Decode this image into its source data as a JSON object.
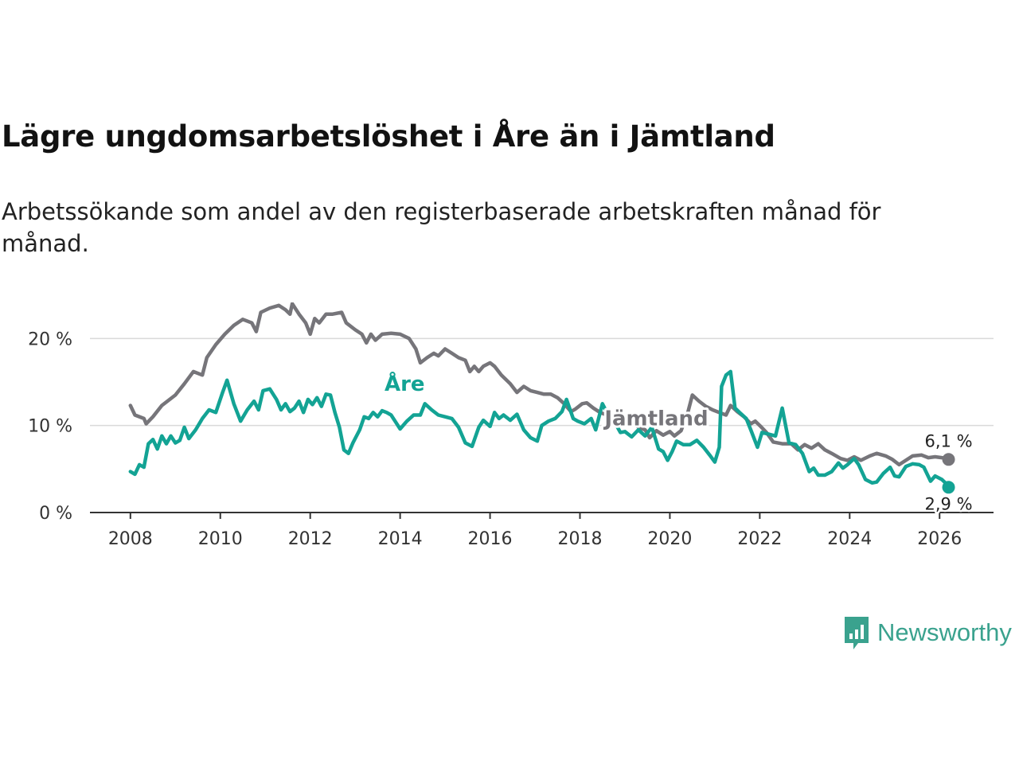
{
  "title": "Lägre ungdomsarbetslöshet i Åre än i Jämtland",
  "subtitle": "Arbetssökande som andel av den registerbaserade arbetskraften månad för månad.",
  "brand": {
    "name": "Newsworthy",
    "color": "#3aa28e"
  },
  "chart_data": {
    "type": "line",
    "xlim": [
      2007.1,
      2027.2
    ],
    "ylim": [
      0,
      22.5
    ],
    "yticks": [
      0,
      10,
      20
    ],
    "ytick_labels": [
      "0 %",
      "10 %",
      "20 %"
    ],
    "xticks": [
      2008,
      2010,
      2012,
      2014,
      2016,
      2018,
      2020,
      2022,
      2024,
      2026
    ],
    "xtick_labels": [
      "2008",
      "2010",
      "2012",
      "2014",
      "2016",
      "2018",
      "2020",
      "2022",
      "2024",
      "2026"
    ],
    "grid": true,
    "series": [
      {
        "name": "Jämtland",
        "color": "#76757a",
        "end_label": "6,1 %",
        "points": [
          [
            2008.0,
            12.3
          ],
          [
            2008.1,
            11.2
          ],
          [
            2008.3,
            10.8
          ],
          [
            2008.35,
            10.2
          ],
          [
            2008.5,
            11.0
          ],
          [
            2008.7,
            12.3
          ],
          [
            2009.0,
            13.5
          ],
          [
            2009.2,
            14.8
          ],
          [
            2009.4,
            16.2
          ],
          [
            2009.6,
            15.8
          ],
          [
            2009.7,
            17.8
          ],
          [
            2009.9,
            19.3
          ],
          [
            2010.1,
            20.5
          ],
          [
            2010.3,
            21.5
          ],
          [
            2010.5,
            22.2
          ],
          [
            2010.7,
            21.8
          ],
          [
            2010.8,
            20.8
          ],
          [
            2010.9,
            23.0
          ],
          [
            2011.1,
            23.5
          ],
          [
            2011.3,
            23.8
          ],
          [
            2011.45,
            23.3
          ],
          [
            2011.55,
            22.8
          ],
          [
            2011.6,
            24.0
          ],
          [
            2011.75,
            22.8
          ],
          [
            2011.9,
            21.8
          ],
          [
            2012.0,
            20.5
          ],
          [
            2012.1,
            22.3
          ],
          [
            2012.2,
            21.8
          ],
          [
            2012.35,
            22.8
          ],
          [
            2012.5,
            22.8
          ],
          [
            2012.7,
            23.0
          ],
          [
            2012.8,
            21.8
          ],
          [
            2013.0,
            21.0
          ],
          [
            2013.15,
            20.5
          ],
          [
            2013.25,
            19.5
          ],
          [
            2013.35,
            20.5
          ],
          [
            2013.45,
            19.8
          ],
          [
            2013.6,
            20.5
          ],
          [
            2013.8,
            20.6
          ],
          [
            2014.0,
            20.5
          ],
          [
            2014.2,
            20.0
          ],
          [
            2014.35,
            18.8
          ],
          [
            2014.45,
            17.2
          ],
          [
            2014.6,
            17.8
          ],
          [
            2014.75,
            18.3
          ],
          [
            2014.85,
            18.0
          ],
          [
            2015.0,
            18.8
          ],
          [
            2015.15,
            18.3
          ],
          [
            2015.3,
            17.8
          ],
          [
            2015.45,
            17.5
          ],
          [
            2015.55,
            16.2
          ],
          [
            2015.65,
            16.8
          ],
          [
            2015.75,
            16.2
          ],
          [
            2015.85,
            16.8
          ],
          [
            2016.0,
            17.2
          ],
          [
            2016.1,
            16.8
          ],
          [
            2016.25,
            15.8
          ],
          [
            2016.45,
            14.8
          ],
          [
            2016.6,
            13.8
          ],
          [
            2016.75,
            14.5
          ],
          [
            2016.9,
            14.0
          ],
          [
            2017.05,
            13.8
          ],
          [
            2017.2,
            13.6
          ],
          [
            2017.35,
            13.6
          ],
          [
            2017.5,
            13.2
          ],
          [
            2017.65,
            12.5
          ],
          [
            2017.8,
            11.6
          ],
          [
            2017.9,
            11.9
          ],
          [
            2018.05,
            12.5
          ],
          [
            2018.15,
            12.6
          ],
          [
            2018.3,
            12.0
          ],
          [
            2018.45,
            11.5
          ],
          [
            2018.6,
            11.2
          ],
          [
            2018.75,
            10.8
          ],
          [
            2018.85,
            11.0
          ],
          [
            2019.0,
            10.6
          ],
          [
            2019.15,
            10.4
          ],
          [
            2019.3,
            9.8
          ],
          [
            2019.45,
            9.5
          ],
          [
            2019.55,
            8.6
          ],
          [
            2019.7,
            9.4
          ],
          [
            2019.85,
            8.9
          ],
          [
            2020.0,
            9.3
          ],
          [
            2020.1,
            8.8
          ],
          [
            2020.25,
            9.4
          ],
          [
            2020.4,
            11.5
          ],
          [
            2020.5,
            13.5
          ],
          [
            2020.65,
            12.8
          ],
          [
            2020.8,
            12.2
          ],
          [
            2020.95,
            11.8
          ],
          [
            2021.1,
            11.5
          ],
          [
            2021.25,
            11.2
          ],
          [
            2021.35,
            12.3
          ],
          [
            2021.5,
            11.6
          ],
          [
            2021.65,
            11.0
          ],
          [
            2021.8,
            10.2
          ],
          [
            2021.9,
            10.5
          ],
          [
            2022.0,
            10.0
          ],
          [
            2022.15,
            9.2
          ],
          [
            2022.3,
            8.1
          ],
          [
            2022.5,
            7.9
          ],
          [
            2022.7,
            7.9
          ],
          [
            2022.85,
            7.2
          ],
          [
            2023.0,
            7.8
          ],
          [
            2023.15,
            7.4
          ],
          [
            2023.3,
            7.9
          ],
          [
            2023.45,
            7.2
          ],
          [
            2023.6,
            6.8
          ],
          [
            2023.8,
            6.2
          ],
          [
            2023.95,
            6.0
          ],
          [
            2024.1,
            6.4
          ],
          [
            2024.25,
            6.0
          ],
          [
            2024.45,
            6.5
          ],
          [
            2024.6,
            6.8
          ],
          [
            2024.8,
            6.5
          ],
          [
            2024.95,
            6.1
          ],
          [
            2025.1,
            5.5
          ],
          [
            2025.25,
            6.0
          ],
          [
            2025.4,
            6.5
          ],
          [
            2025.6,
            6.6
          ],
          [
            2025.75,
            6.3
          ],
          [
            2025.9,
            6.4
          ],
          [
            2026.05,
            6.3
          ],
          [
            2026.15,
            6.2
          ],
          [
            2026.2,
            6.1
          ]
        ]
      },
      {
        "name": "Åre",
        "color": "#13a394",
        "end_label": "2,9 %",
        "points": [
          [
            2008.0,
            4.7
          ],
          [
            2008.1,
            4.4
          ],
          [
            2008.2,
            5.5
          ],
          [
            2008.3,
            5.2
          ],
          [
            2008.4,
            7.9
          ],
          [
            2008.5,
            8.4
          ],
          [
            2008.6,
            7.3
          ],
          [
            2008.7,
            8.8
          ],
          [
            2008.8,
            7.9
          ],
          [
            2008.9,
            8.8
          ],
          [
            2009.0,
            8.0
          ],
          [
            2009.1,
            8.3
          ],
          [
            2009.2,
            9.8
          ],
          [
            2009.3,
            8.5
          ],
          [
            2009.45,
            9.5
          ],
          [
            2009.6,
            10.8
          ],
          [
            2009.75,
            11.8
          ],
          [
            2009.9,
            11.5
          ],
          [
            2010.05,
            13.8
          ],
          [
            2010.15,
            15.2
          ],
          [
            2010.3,
            12.5
          ],
          [
            2010.45,
            10.5
          ],
          [
            2010.6,
            11.8
          ],
          [
            2010.75,
            12.8
          ],
          [
            2010.85,
            11.8
          ],
          [
            2010.95,
            14.0
          ],
          [
            2011.1,
            14.2
          ],
          [
            2011.25,
            13.0
          ],
          [
            2011.35,
            11.8
          ],
          [
            2011.45,
            12.5
          ],
          [
            2011.55,
            11.6
          ],
          [
            2011.65,
            12.0
          ],
          [
            2011.75,
            12.8
          ],
          [
            2011.85,
            11.5
          ],
          [
            2011.95,
            13.0
          ],
          [
            2012.05,
            12.4
          ],
          [
            2012.15,
            13.2
          ],
          [
            2012.25,
            12.2
          ],
          [
            2012.35,
            13.6
          ],
          [
            2012.45,
            13.5
          ],
          [
            2012.55,
            11.5
          ],
          [
            2012.65,
            9.8
          ],
          [
            2012.75,
            7.2
          ],
          [
            2012.85,
            6.8
          ],
          [
            2012.95,
            8.0
          ],
          [
            2013.1,
            9.5
          ],
          [
            2013.2,
            11.0
          ],
          [
            2013.3,
            10.8
          ],
          [
            2013.4,
            11.5
          ],
          [
            2013.5,
            11.0
          ],
          [
            2013.6,
            11.7
          ],
          [
            2013.7,
            11.5
          ],
          [
            2013.8,
            11.2
          ],
          [
            2013.9,
            10.4
          ],
          [
            2014.0,
            9.6
          ],
          [
            2014.15,
            10.5
          ],
          [
            2014.3,
            11.2
          ],
          [
            2014.45,
            11.2
          ],
          [
            2014.55,
            12.5
          ],
          [
            2014.7,
            11.8
          ],
          [
            2014.85,
            11.2
          ],
          [
            2015.0,
            11.0
          ],
          [
            2015.15,
            10.8
          ],
          [
            2015.3,
            9.8
          ],
          [
            2015.45,
            8.0
          ],
          [
            2015.6,
            7.6
          ],
          [
            2015.75,
            9.8
          ],
          [
            2015.85,
            10.6
          ],
          [
            2016.0,
            9.9
          ],
          [
            2016.1,
            11.5
          ],
          [
            2016.2,
            10.8
          ],
          [
            2016.3,
            11.2
          ],
          [
            2016.45,
            10.6
          ],
          [
            2016.6,
            11.3
          ],
          [
            2016.75,
            9.5
          ],
          [
            2016.9,
            8.6
          ],
          [
            2017.05,
            8.2
          ],
          [
            2017.15,
            10.0
          ],
          [
            2017.3,
            10.5
          ],
          [
            2017.45,
            10.8
          ],
          [
            2017.6,
            11.6
          ],
          [
            2017.7,
            13.0
          ],
          [
            2017.85,
            10.8
          ],
          [
            2017.95,
            10.5
          ],
          [
            2018.1,
            10.2
          ],
          [
            2018.25,
            10.8
          ],
          [
            2018.35,
            9.5
          ],
          [
            2018.5,
            12.5
          ],
          [
            2018.6,
            11.5
          ],
          [
            2018.75,
            10.6
          ],
          [
            2018.9,
            9.2
          ],
          [
            2019.0,
            9.3
          ],
          [
            2019.15,
            8.7
          ],
          [
            2019.3,
            9.5
          ],
          [
            2019.45,
            8.8
          ],
          [
            2019.6,
            9.8
          ],
          [
            2019.75,
            7.3
          ],
          [
            2019.85,
            7.0
          ],
          [
            2019.95,
            6.0
          ],
          [
            2020.05,
            7.0
          ],
          [
            2020.15,
            8.2
          ],
          [
            2020.3,
            7.8
          ],
          [
            2020.45,
            7.8
          ],
          [
            2020.6,
            8.3
          ],
          [
            2020.75,
            7.5
          ],
          [
            2020.9,
            6.5
          ],
          [
            2021.0,
            5.8
          ],
          [
            2021.1,
            7.5
          ],
          [
            2021.15,
            14.5
          ],
          [
            2021.25,
            15.8
          ],
          [
            2021.35,
            16.2
          ],
          [
            2021.45,
            12.0
          ],
          [
            2021.55,
            11.5
          ],
          [
            2021.7,
            10.8
          ],
          [
            2021.8,
            9.5
          ],
          [
            2021.95,
            7.5
          ],
          [
            2022.05,
            9.2
          ],
          [
            2022.2,
            9.0
          ],
          [
            2022.35,
            8.8
          ],
          [
            2022.5,
            12.0
          ],
          [
            2022.65,
            8.0
          ],
          [
            2022.8,
            7.8
          ],
          [
            2022.95,
            6.8
          ],
          [
            2023.1,
            4.7
          ],
          [
            2023.2,
            5.1
          ],
          [
            2023.3,
            4.3
          ],
          [
            2023.45,
            4.3
          ],
          [
            2023.6,
            4.7
          ],
          [
            2023.75,
            5.7
          ],
          [
            2023.85,
            5.1
          ],
          [
            2023.95,
            5.5
          ],
          [
            2024.1,
            6.2
          ],
          [
            2024.2,
            5.5
          ],
          [
            2024.35,
            3.8
          ],
          [
            2024.5,
            3.4
          ],
          [
            2024.6,
            3.5
          ],
          [
            2024.75,
            4.5
          ],
          [
            2024.9,
            5.2
          ],
          [
            2025.0,
            4.2
          ],
          [
            2025.1,
            4.1
          ],
          [
            2025.25,
            5.3
          ],
          [
            2025.4,
            5.6
          ],
          [
            2025.55,
            5.5
          ],
          [
            2025.65,
            5.2
          ],
          [
            2025.8,
            3.6
          ],
          [
            2025.9,
            4.2
          ],
          [
            2026.05,
            3.8
          ],
          [
            2026.15,
            3.3
          ],
          [
            2026.2,
            2.9
          ]
        ]
      }
    ]
  }
}
